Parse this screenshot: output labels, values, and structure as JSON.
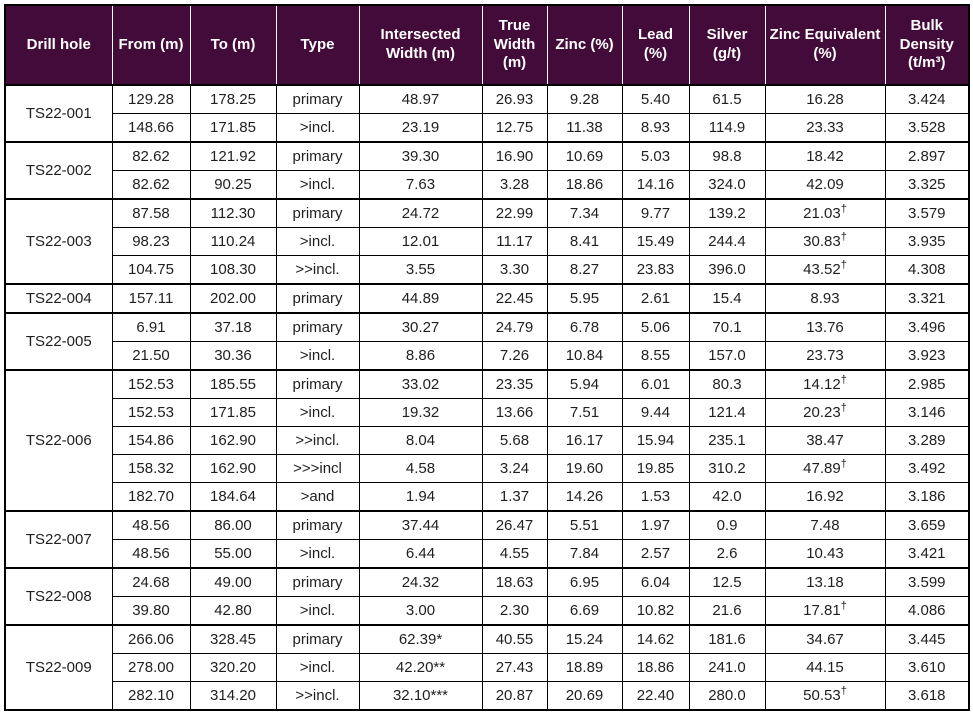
{
  "colors": {
    "header_bg": "#430b39",
    "header_text": "#ffffff",
    "border": "#000000",
    "cell_bg": "#ffffff",
    "text": "#1f1f1f"
  },
  "table": {
    "columns": [
      "Drill hole",
      "From (m)",
      "To (m)",
      "Type",
      "Intersected Width (m)",
      "True Width (m)",
      "Zinc (%)",
      "Lead (%)",
      "Silver (g/t)",
      "Zinc Equivalent (%)",
      "Bulk Density (t/m³)"
    ],
    "groups": [
      {
        "drill_hole": "TS22-001",
        "rows": [
          {
            "from": "129.28",
            "to": "178.25",
            "type": "primary",
            "intersected_width": "48.97",
            "true_width": "26.93",
            "zinc": "9.28",
            "lead": "5.40",
            "silver": "61.5",
            "zinc_equivalent": "16.28",
            "zeq_note": "",
            "bulk_density": "3.424"
          },
          {
            "from": "148.66",
            "to": "171.85",
            "type": ">incl.",
            "intersected_width": "23.19",
            "true_width": "12.75",
            "zinc": "11.38",
            "lead": "8.93",
            "silver": "114.9",
            "zinc_equivalent": "23.33",
            "zeq_note": "",
            "bulk_density": "3.528"
          }
        ]
      },
      {
        "drill_hole": "TS22-002",
        "rows": [
          {
            "from": "82.62",
            "to": "121.92",
            "type": "primary",
            "intersected_width": "39.30",
            "true_width": "16.90",
            "zinc": "10.69",
            "lead": "5.03",
            "silver": "98.8",
            "zinc_equivalent": "18.42",
            "zeq_note": "",
            "bulk_density": "2.897"
          },
          {
            "from": "82.62",
            "to": "90.25",
            "type": ">incl.",
            "intersected_width": "7.63",
            "true_width": "3.28",
            "zinc": "18.86",
            "lead": "14.16",
            "silver": "324.0",
            "zinc_equivalent": "42.09",
            "zeq_note": "",
            "bulk_density": "3.325"
          }
        ]
      },
      {
        "drill_hole": "TS22-003",
        "rows": [
          {
            "from": "87.58",
            "to": "112.30",
            "type": "primary",
            "intersected_width": "24.72",
            "true_width": "22.99",
            "zinc": "7.34",
            "lead": "9.77",
            "silver": "139.2",
            "zinc_equivalent": "21.03",
            "zeq_note": "†",
            "bulk_density": "3.579"
          },
          {
            "from": "98.23",
            "to": "110.24",
            "type": ">incl.",
            "intersected_width": "12.01",
            "true_width": "11.17",
            "zinc": "8.41",
            "lead": "15.49",
            "silver": "244.4",
            "zinc_equivalent": "30.83",
            "zeq_note": "†",
            "bulk_density": "3.935"
          },
          {
            "from": "104.75",
            "to": "108.30",
            "type": ">>incl.",
            "intersected_width": "3.55",
            "true_width": "3.30",
            "zinc": "8.27",
            "lead": "23.83",
            "silver": "396.0",
            "zinc_equivalent": "43.52",
            "zeq_note": "†",
            "bulk_density": "4.308"
          }
        ]
      },
      {
        "drill_hole": "TS22-004",
        "rows": [
          {
            "from": "157.11",
            "to": "202.00",
            "type": "primary",
            "intersected_width": "44.89",
            "true_width": "22.45",
            "zinc": "5.95",
            "lead": "2.61",
            "silver": "15.4",
            "zinc_equivalent": "8.93",
            "zeq_note": "",
            "bulk_density": "3.321"
          }
        ]
      },
      {
        "drill_hole": "TS22-005",
        "rows": [
          {
            "from": "6.91",
            "to": "37.18",
            "type": "primary",
            "intersected_width": "30.27",
            "true_width": "24.79",
            "zinc": "6.78",
            "lead": "5.06",
            "silver": "70.1",
            "zinc_equivalent": "13.76",
            "zeq_note": "",
            "bulk_density": "3.496"
          },
          {
            "from": "21.50",
            "to": "30.36",
            "type": ">incl.",
            "intersected_width": "8.86",
            "true_width": "7.26",
            "zinc": "10.84",
            "lead": "8.55",
            "silver": "157.0",
            "zinc_equivalent": "23.73",
            "zeq_note": "",
            "bulk_density": "3.923"
          }
        ]
      },
      {
        "drill_hole": "TS22-006",
        "rows": [
          {
            "from": "152.53",
            "to": "185.55",
            "type": "primary",
            "intersected_width": "33.02",
            "true_width": "23.35",
            "zinc": "5.94",
            "lead": "6.01",
            "silver": "80.3",
            "zinc_equivalent": "14.12",
            "zeq_note": "†",
            "bulk_density": "2.985"
          },
          {
            "from": "152.53",
            "to": "171.85",
            "type": ">incl.",
            "intersected_width": "19.32",
            "true_width": "13.66",
            "zinc": "7.51",
            "lead": "9.44",
            "silver": "121.4",
            "zinc_equivalent": "20.23",
            "zeq_note": "†",
            "bulk_density": "3.146"
          },
          {
            "from": "154.86",
            "to": "162.90",
            "type": ">>incl.",
            "intersected_width": "8.04",
            "true_width": "5.68",
            "zinc": "16.17",
            "lead": "15.94",
            "silver": "235.1",
            "zinc_equivalent": "38.47",
            "zeq_note": "",
            "bulk_density": "3.289"
          },
          {
            "from": "158.32",
            "to": "162.90",
            "type": ">>>incl",
            "intersected_width": "4.58",
            "true_width": "3.24",
            "zinc": "19.60",
            "lead": "19.85",
            "silver": "310.2",
            "zinc_equivalent": "47.89",
            "zeq_note": "†",
            "bulk_density": "3.492"
          },
          {
            "from": "182.70",
            "to": "184.64",
            "type": ">and",
            "intersected_width": "1.94",
            "true_width": "1.37",
            "zinc": "14.26",
            "lead": "1.53",
            "silver": "42.0",
            "zinc_equivalent": "16.92",
            "zeq_note": "",
            "bulk_density": "3.186"
          }
        ]
      },
      {
        "drill_hole": "TS22-007",
        "rows": [
          {
            "from": "48.56",
            "to": "86.00",
            "type": "primary",
            "intersected_width": "37.44",
            "true_width": "26.47",
            "zinc": "5.51",
            "lead": "1.97",
            "silver": "0.9",
            "zinc_equivalent": "7.48",
            "zeq_note": "",
            "bulk_density": "3.659"
          },
          {
            "from": "48.56",
            "to": "55.00",
            "type": ">incl.",
            "intersected_width": "6.44",
            "true_width": "4.55",
            "zinc": "7.84",
            "lead": "2.57",
            "silver": "2.6",
            "zinc_equivalent": "10.43",
            "zeq_note": "",
            "bulk_density": "3.421"
          }
        ]
      },
      {
        "drill_hole": "TS22-008",
        "rows": [
          {
            "from": "24.68",
            "to": "49.00",
            "type": "primary",
            "intersected_width": "24.32",
            "true_width": "18.63",
            "zinc": "6.95",
            "lead": "6.04",
            "silver": "12.5",
            "zinc_equivalent": "13.18",
            "zeq_note": "",
            "bulk_density": "3.599"
          },
          {
            "from": "39.80",
            "to": "42.80",
            "type": ">incl.",
            "intersected_width": "3.00",
            "true_width": "2.30",
            "zinc": "6.69",
            "lead": "10.82",
            "silver": "21.6",
            "zinc_equivalent": "17.81",
            "zeq_note": "†",
            "bulk_density": "4.086"
          }
        ]
      },
      {
        "drill_hole": "TS22-009",
        "rows": [
          {
            "from": "266.06",
            "to": "328.45",
            "type": "primary",
            "intersected_width": "62.39*",
            "true_width": "40.55",
            "zinc": "15.24",
            "lead": "14.62",
            "silver": "181.6",
            "zinc_equivalent": "34.67",
            "zeq_note": "",
            "bulk_density": "3.445"
          },
          {
            "from": "278.00",
            "to": "320.20",
            "type": ">incl.",
            "intersected_width": "42.20**",
            "true_width": "27.43",
            "zinc": "18.89",
            "lead": "18.86",
            "silver": "241.0",
            "zinc_equivalent": "44.15",
            "zeq_note": "",
            "bulk_density": "3.610"
          },
          {
            "from": "282.10",
            "to": "314.20",
            "type": ">>incl.",
            "intersected_width": "32.10***",
            "true_width": "20.87",
            "zinc": "20.69",
            "lead": "22.40",
            "silver": "280.0",
            "zinc_equivalent": "50.53",
            "zeq_note": "†",
            "bulk_density": "3.618"
          }
        ]
      }
    ]
  }
}
